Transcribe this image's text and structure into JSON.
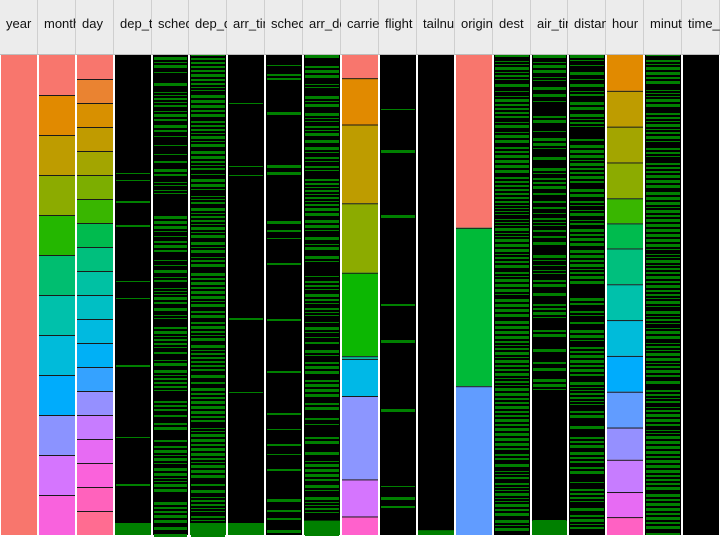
{
  "chart_data": {
    "type": "heatmap",
    "title": "",
    "columns": [
      {
        "name": "year",
        "kind": "cat",
        "segs": [
          [
            "#F8766D",
            1
          ]
        ]
      },
      {
        "name": "month",
        "kind": "cat",
        "segs": [
          [
            "#F8766D",
            1
          ],
          [
            "#E18A00",
            1
          ],
          [
            "#BE9C00",
            1
          ],
          [
            "#8CAB00",
            1
          ],
          [
            "#24B700",
            1
          ],
          [
            "#00BE70",
            1
          ],
          [
            "#00C1AB",
            1
          ],
          [
            "#00BBDA",
            1
          ],
          [
            "#00ACFC",
            1
          ],
          [
            "#8B93FF",
            1
          ],
          [
            "#D575FE",
            1
          ],
          [
            "#F962DD",
            1
          ]
        ]
      },
      {
        "name": "day",
        "kind": "cat",
        "segs": [
          [
            "#F8766D",
            1
          ],
          [
            "#EA8331",
            1
          ],
          [
            "#D89000",
            1
          ],
          [
            "#C09B00",
            1
          ],
          [
            "#A3A500",
            1
          ],
          [
            "#7CAE00",
            1
          ],
          [
            "#39B600",
            1
          ],
          [
            "#00BB4E",
            1
          ],
          [
            "#00BF7D",
            1
          ],
          [
            "#00C1A3",
            1
          ],
          [
            "#00BFC4",
            1
          ],
          [
            "#00BAE0",
            1
          ],
          [
            "#00B0F6",
            1
          ],
          [
            "#35A2FF",
            1
          ],
          [
            "#9590FF",
            1
          ],
          [
            "#C77CFF",
            1
          ],
          [
            "#E76BF3",
            1
          ],
          [
            "#FA62DB",
            1
          ],
          [
            "#FF62BC",
            1
          ],
          [
            "#FF6C91",
            1
          ]
        ]
      },
      {
        "name": "dep_time",
        "kind": "num",
        "dense": 0.04,
        "tail": [
          0.975,
          1
        ]
      },
      {
        "name": "sched_dep_time",
        "kind": "num",
        "dense": 0.55
      },
      {
        "name": "dep_delay",
        "kind": "num",
        "dense": 0.82,
        "tail": [
          0.975,
          1
        ]
      },
      {
        "name": "arr_time",
        "kind": "num",
        "dense": 0.02,
        "tail": [
          0.975,
          1
        ]
      },
      {
        "name": "sched_arr_time",
        "kind": "num",
        "dense": 0.08
      },
      {
        "name": "arr_delay",
        "kind": "num",
        "dense": 0.6,
        "tail": [
          0.97,
          1
        ]
      },
      {
        "name": "carrier",
        "kind": "cat",
        "segs": [
          [
            "#F8766D",
            0.05
          ],
          [
            "#E18A00",
            0.1
          ],
          [
            "#BE9C00",
            0.17
          ],
          [
            "#8CAB00",
            0.15
          ],
          [
            "#0CB702",
            0.18
          ],
          [
            "#00BE9C",
            0.006
          ],
          [
            "#00B8E7",
            0.08
          ],
          [
            "#8C96FF",
            0.18
          ],
          [
            "#D575FE",
            0.08
          ],
          [
            "#FF61CC",
            0.04
          ]
        ]
      },
      {
        "name": "flight",
        "kind": "num",
        "dense": 0.03
      },
      {
        "name": "tailnum",
        "kind": "num",
        "dense": 0.01,
        "tail": [
          0.99,
          1
        ]
      },
      {
        "name": "origin",
        "kind": "cat",
        "segs": [
          [
            "#F8766D",
            0.36
          ],
          [
            "#00BA38",
            0.33
          ],
          [
            "#619CFF",
            0.31
          ]
        ]
      },
      {
        "name": "dest",
        "kind": "num",
        "dense": 0.82
      },
      {
        "name": "air_time",
        "kind": "num",
        "dense": 0.45,
        "gap": [
          0.7,
          0.96
        ],
        "tail": [
          0.97,
          1
        ]
      },
      {
        "name": "distance",
        "kind": "num",
        "dense": 0.62
      },
      {
        "name": "hour",
        "kind": "cat",
        "segs": [
          [
            "#E18A00",
            1
          ],
          [
            "#BE9C00",
            1
          ],
          [
            "#A3A500",
            1
          ],
          [
            "#8CAB00",
            1
          ],
          [
            "#39B600",
            0.7
          ],
          [
            "#00BB4E",
            0.7
          ],
          [
            "#00BF7D",
            1
          ],
          [
            "#00C1AB",
            1
          ],
          [
            "#00BBDA",
            1
          ],
          [
            "#00ACFC",
            1
          ],
          [
            "#619CFF",
            1
          ],
          [
            "#9590FF",
            0.9
          ],
          [
            "#C77CFF",
            0.9
          ],
          [
            "#E76BF3",
            0.7
          ],
          [
            "#FF61C3",
            0.5
          ]
        ]
      },
      {
        "name": "minute",
        "kind": "num",
        "dense": 0.88
      },
      {
        "name": "time_hour",
        "kind": "num",
        "dense": 0
      }
    ]
  }
}
